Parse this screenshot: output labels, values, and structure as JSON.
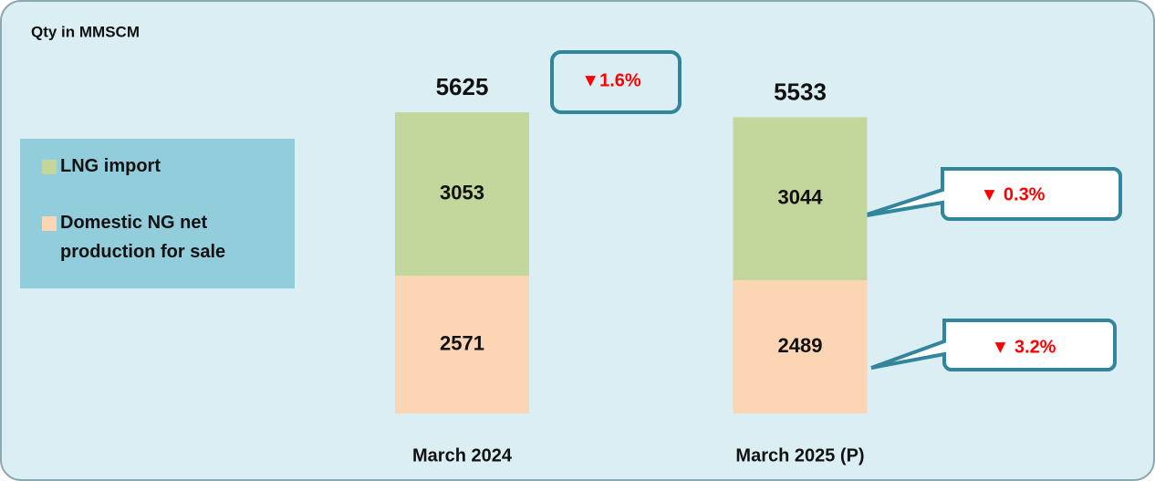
{
  "chart_data": {
    "type": "bar",
    "stacked": true,
    "subtitle": "Qty in MMSCM",
    "categories": [
      "March 2024",
      "March 2025 (P)"
    ],
    "series": [
      {
        "name": "Domestic NG net production for sale",
        "color": "#fcd5b5",
        "values": [
          2571,
          2489
        ]
      },
      {
        "name": "LNG import",
        "color": "#c3d69b",
        "values": [
          3053,
          3044
        ]
      }
    ],
    "totals": [
      5625,
      5533
    ],
    "annotations": {
      "total_change": "▼1.6%",
      "lng_change": "▼ 0.3%",
      "domestic_change": "▼ 3.2%"
    }
  }
}
